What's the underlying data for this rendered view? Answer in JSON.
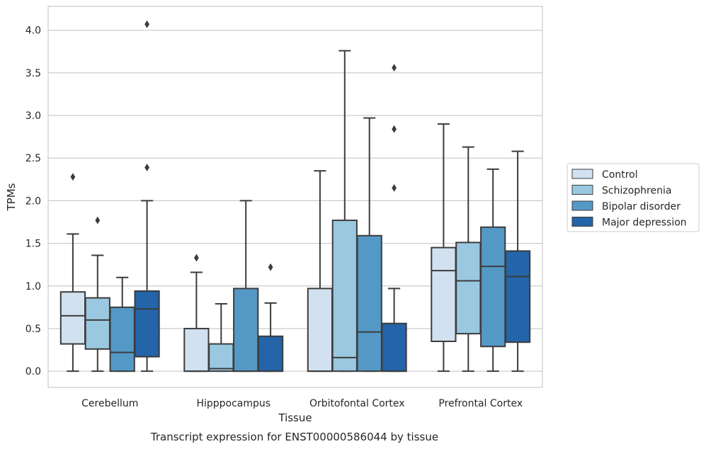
{
  "caption": "Transcript expression for ENST00000586044 by tissue",
  "chart_data": {
    "type": "box",
    "xlabel": "Tissue",
    "ylabel": "TPMs",
    "ylim": [
      -0.19,
      4.28
    ],
    "yticks": [
      "0.0",
      "0.5",
      "1.0",
      "1.5",
      "2.0",
      "2.5",
      "3.0",
      "3.5",
      "4.0"
    ],
    "grid": "horizontal",
    "legend_position": "right",
    "categories": [
      "Cerebellum",
      "Hipppocampus",
      "Orbitofontal Cortex",
      "Prefrontal Cortex"
    ],
    "series": [
      {
        "name": "Control",
        "color": "#d1e1f0",
        "boxes": [
          {
            "min": 0.0,
            "q1": 0.32,
            "median": 0.65,
            "q3": 0.93,
            "max": 1.61,
            "outliers": [
              2.28
            ]
          },
          {
            "min": 0.0,
            "q1": 0.0,
            "median": 0.0,
            "q3": 0.5,
            "max": 1.16,
            "outliers": [
              1.33
            ]
          },
          {
            "min": 0.0,
            "q1": 0.0,
            "median": 0.0,
            "q3": 0.97,
            "max": 2.35,
            "outliers": []
          },
          {
            "min": 0.0,
            "q1": 0.35,
            "median": 1.18,
            "q3": 1.45,
            "max": 2.9,
            "outliers": []
          }
        ]
      },
      {
        "name": "Schizophrenia",
        "color": "#9ac8e0",
        "boxes": [
          {
            "min": 0.0,
            "q1": 0.26,
            "median": 0.6,
            "q3": 0.86,
            "max": 1.36,
            "outliers": [
              1.77
            ]
          },
          {
            "min": 0.0,
            "q1": 0.0,
            "median": 0.03,
            "q3": 0.32,
            "max": 0.79,
            "outliers": []
          },
          {
            "min": 0.0,
            "q1": 0.0,
            "median": 0.16,
            "q3": 1.77,
            "max": 3.76,
            "outliers": []
          },
          {
            "min": 0.0,
            "q1": 0.44,
            "median": 1.06,
            "q3": 1.51,
            "max": 2.63,
            "outliers": []
          }
        ]
      },
      {
        "name": "Bipolar disorder",
        "color": "#5499c6",
        "boxes": [
          {
            "min": 0.0,
            "q1": 0.0,
            "median": 0.22,
            "q3": 0.75,
            "max": 1.1,
            "outliers": []
          },
          {
            "min": 0.0,
            "q1": 0.0,
            "median": 0.0,
            "q3": 0.97,
            "max": 2.0,
            "outliers": []
          },
          {
            "min": 0.0,
            "q1": 0.0,
            "median": 0.46,
            "q3": 1.59,
            "max": 2.97,
            "outliers": []
          },
          {
            "min": 0.0,
            "q1": 0.29,
            "median": 1.23,
            "q3": 1.69,
            "max": 2.37,
            "outliers": []
          }
        ]
      },
      {
        "name": "Major depression",
        "color": "#2464a8",
        "boxes": [
          {
            "min": 0.0,
            "q1": 0.17,
            "median": 0.73,
            "q3": 0.94,
            "max": 2.0,
            "outliers": [
              2.39,
              4.07
            ]
          },
          {
            "min": 0.0,
            "q1": 0.0,
            "median": 0.0,
            "q3": 0.41,
            "max": 0.8,
            "outliers": [
              1.22
            ]
          },
          {
            "min": 0.0,
            "q1": 0.0,
            "median": 0.0,
            "q3": 0.56,
            "max": 0.97,
            "outliers": [
              2.15,
              2.84,
              3.56
            ]
          },
          {
            "min": 0.0,
            "q1": 0.34,
            "median": 1.11,
            "q3": 1.41,
            "max": 2.58,
            "outliers": []
          }
        ]
      }
    ]
  }
}
